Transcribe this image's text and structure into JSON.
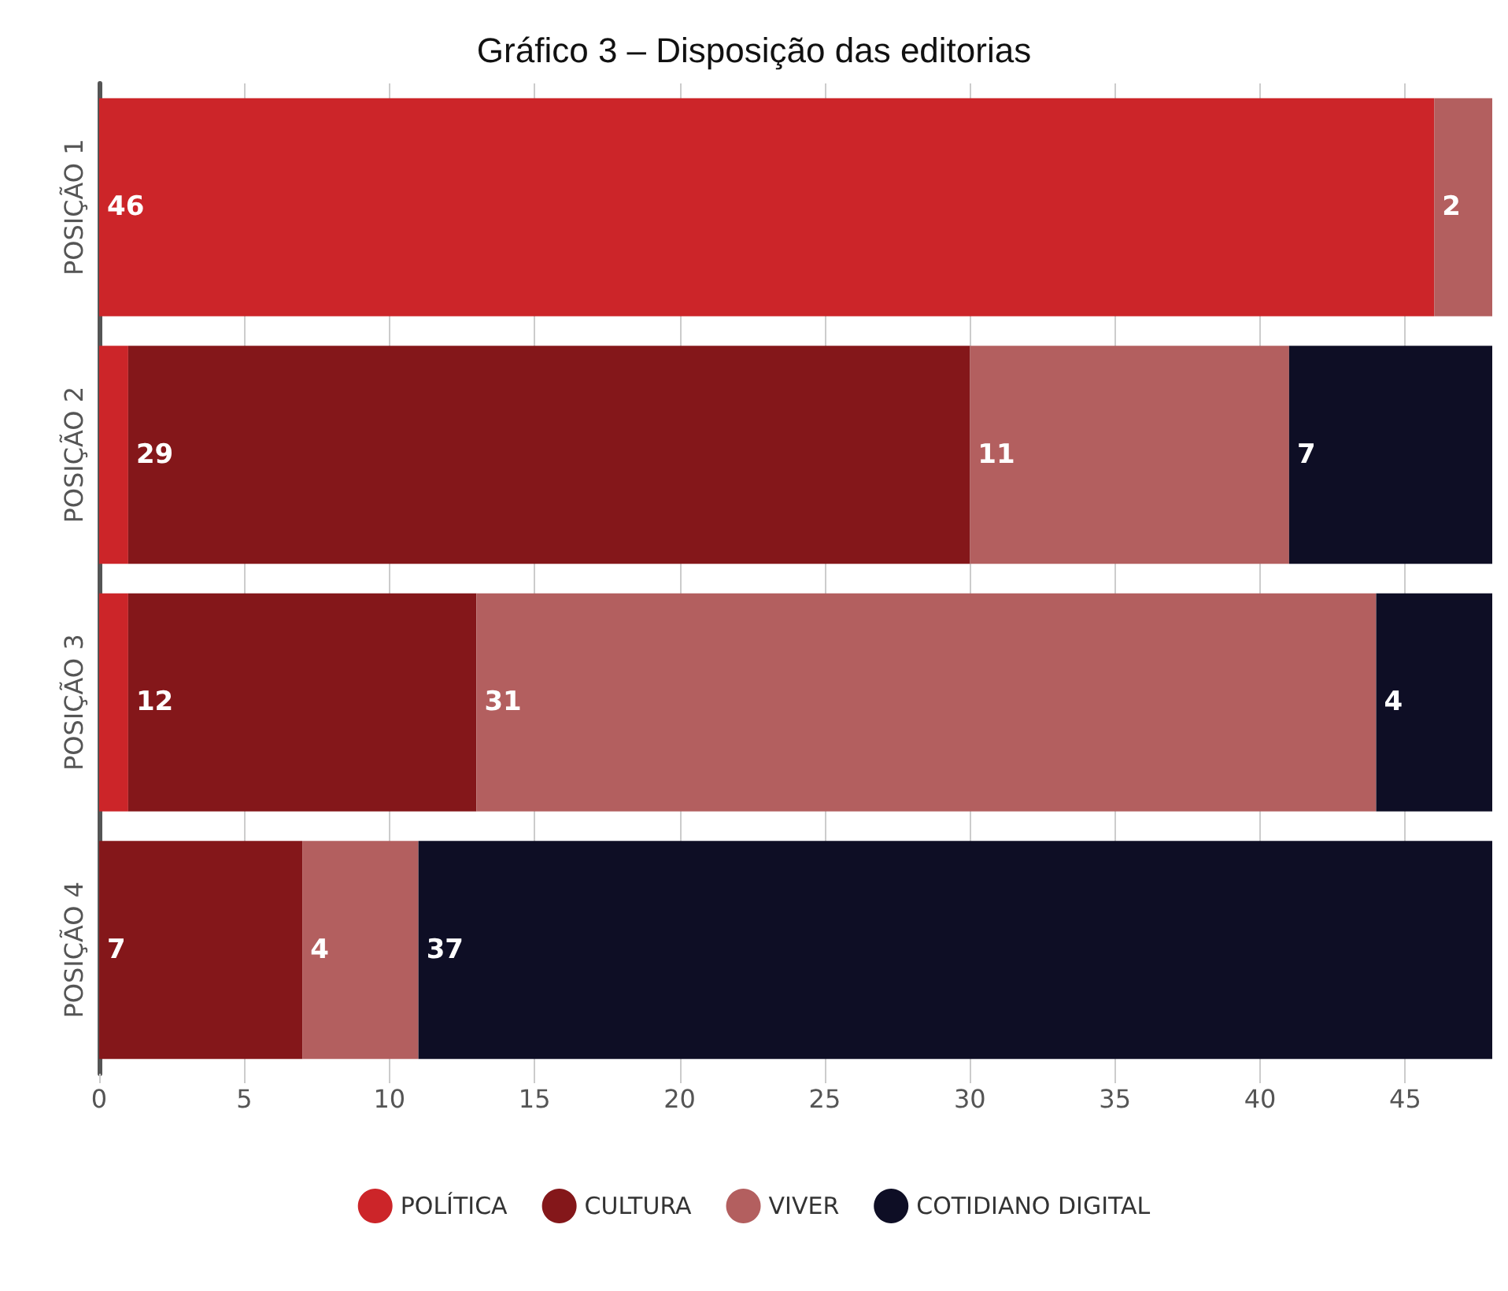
{
  "chart_data": {
    "type": "bar",
    "title": "Gráfico 3 – Disposição das editorias",
    "orientation": "horizontal",
    "stacked": true,
    "categories": [
      "POSIÇÃO 1",
      "POSIÇÃO 2",
      "POSIÇÃO 3",
      "POSIÇÃO 4"
    ],
    "series": [
      {
        "name": "POLÍTICA",
        "color": "#cc2529",
        "values": [
          46,
          1,
          1,
          null
        ],
        "value_labels": [
          "46",
          null,
          null,
          null
        ]
      },
      {
        "name": "CULTURA",
        "color": "#84171a",
        "values": [
          null,
          29,
          12,
          7
        ],
        "value_labels": [
          null,
          "29",
          "12",
          "7"
        ]
      },
      {
        "name": "VIVER",
        "color": "#b35f5f",
        "values": [
          2,
          11,
          31,
          4
        ],
        "value_labels": [
          "2",
          "11",
          "31",
          "4"
        ]
      },
      {
        "name": "COTIDIANO DIGITAL",
        "color": "#0e0e25",
        "values": [
          null,
          7,
          4,
          37
        ],
        "value_labels": [
          null,
          "7",
          "4",
          "37"
        ]
      }
    ],
    "xlim": [
      0,
      48
    ],
    "xticks": [
      0,
      5,
      10,
      15,
      20,
      25,
      30,
      35,
      40,
      45
    ],
    "grid": "x",
    "legend": "bottom"
  }
}
